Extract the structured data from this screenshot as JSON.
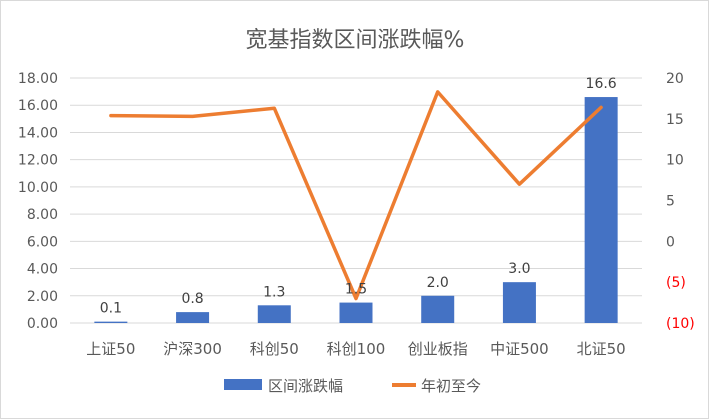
{
  "chart_data": {
    "type": "bar",
    "title": "宽基指数区间涨跌幅%",
    "categories": [
      "上证50",
      "沪深300",
      "科创50",
      "科创100",
      "创业板指",
      "中证500",
      "北证50"
    ],
    "series": [
      {
        "name": "区间涨跌幅",
        "type": "bar",
        "axis": "left",
        "color": "#4472c4",
        "values": [
          0.1,
          0.8,
          1.3,
          1.5,
          2.0,
          3.0,
          16.6
        ],
        "labels": [
          "0.1",
          "0.8",
          "1.3",
          "1.5",
          "2.0",
          "3.0",
          "16.6"
        ]
      },
      {
        "name": "年初至今",
        "type": "line",
        "axis": "right",
        "color": "#ed7d31",
        "values": [
          15.4,
          15.3,
          16.3,
          -7.0,
          18.3,
          7.0,
          16.4
        ]
      }
    ],
    "y_left": {
      "ylim": [
        0,
        18
      ],
      "ticks": [
        0,
        2,
        4,
        6,
        8,
        10,
        12,
        14,
        16,
        18
      ],
      "tick_labels": [
        "0.00",
        "2.00",
        "4.00",
        "6.00",
        "8.00",
        "10.00",
        "12.00",
        "14.00",
        "16.00",
        "18.00"
      ]
    },
    "y_right": {
      "ylim": [
        -10,
        20
      ],
      "ticks": [
        20,
        15,
        10,
        5,
        0,
        -5,
        -10
      ],
      "tick_labels": [
        "20",
        "15",
        "10",
        "5",
        "0",
        "(5)",
        "(10)"
      ],
      "negative_color": "#ff0000"
    },
    "grid": true,
    "grid_color": "#d9d9d9",
    "legend_position": "bottom"
  }
}
